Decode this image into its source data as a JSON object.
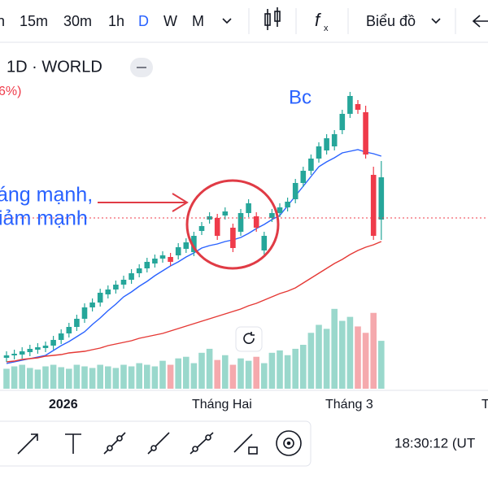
{
  "toolbar": {
    "intervals": [
      "n",
      "15m",
      "30m",
      "1h",
      "D",
      "W",
      "M"
    ],
    "chart_menu": "Biểu đồ"
  },
  "header": {
    "symbol": "1D · WORLD",
    "change": "6%)"
  },
  "annotations": {
    "top": "Bc",
    "line1": "áng mạnh,",
    "line2": "iảm mạnh"
  },
  "x_labels": [
    "2026",
    "Tháng Hai",
    "Tháng 3",
    "T"
  ],
  "footer": {
    "time": "18:30:12 (UT"
  },
  "chart_data": {
    "type": "candlestick",
    "ylim": [
      0,
      380
    ],
    "up_color": "#26a69a",
    "down_color": "#ef3b4a",
    "open": [
      40,
      43,
      44,
      47,
      50,
      52,
      55,
      62,
      70,
      78,
      88,
      102,
      108,
      118,
      124,
      130,
      136,
      144,
      150,
      156,
      162,
      164,
      166,
      174,
      170,
      196,
      210,
      212,
      215,
      200,
      195,
      218,
      214,
      172,
      212,
      218,
      225,
      235,
      255,
      270,
      285,
      295,
      300,
      320,
      340,
      352,
      342,
      265,
      210
    ],
    "close": [
      43,
      45,
      48,
      51,
      53,
      55,
      62,
      70,
      78,
      88,
      102,
      108,
      120,
      124,
      130,
      136,
      144,
      150,
      158,
      162,
      166,
      158,
      176,
      182,
      190,
      202,
      214,
      190,
      220,
      175,
      218,
      230,
      200,
      190,
      218,
      225,
      232,
      255,
      270,
      285,
      300,
      310,
      315,
      340,
      362,
      345,
      290,
      190,
      262
    ],
    "high": [
      48,
      50,
      53,
      56,
      58,
      60,
      67,
      75,
      83,
      93,
      107,
      113,
      125,
      129,
      135,
      141,
      149,
      155,
      163,
      167,
      171,
      169,
      181,
      187,
      195,
      207,
      219,
      217,
      225,
      205,
      223,
      235,
      219,
      195,
      223,
      230,
      237,
      260,
      275,
      290,
      305,
      315,
      320,
      345,
      367,
      357,
      350,
      275,
      282
    ],
    "low": [
      35,
      38,
      39,
      42,
      45,
      47,
      50,
      57,
      65,
      73,
      83,
      97,
      103,
      113,
      119,
      125,
      131,
      139,
      145,
      151,
      157,
      153,
      161,
      169,
      165,
      191,
      205,
      185,
      210,
      170,
      190,
      213,
      195,
      167,
      207,
      213,
      220,
      230,
      250,
      265,
      280,
      290,
      295,
      315,
      335,
      340,
      285,
      185,
      185
    ],
    "ma": [
      {
        "color": "#2962ff",
        "values": [
          33,
          35,
          37,
          39,
          41,
          43,
          49,
          55,
          60,
          66,
          72,
          81,
          89,
          98,
          106,
          115,
          121,
          128,
          134,
          141,
          147,
          153,
          158,
          164,
          169,
          175,
          178,
          180,
          183,
          185,
          188,
          193,
          199,
          204,
          210,
          215,
          227,
          239,
          251,
          263,
          275,
          281,
          286,
          292,
          294,
          296,
          293,
          291,
          288
        ]
      },
      {
        "color": "#e53935",
        "values": [
          35,
          36,
          38,
          39,
          40,
          42,
          43,
          44,
          46,
          47,
          48,
          50,
          52,
          55,
          57,
          59,
          61,
          64,
          66,
          68,
          70,
          73,
          76,
          79,
          82,
          85,
          88,
          91,
          94,
          97,
          100,
          104,
          107,
          111,
          115,
          119,
          122,
          126,
          132,
          138,
          144,
          150,
          156,
          161,
          167,
          172,
          176,
          179,
          183
        ]
      }
    ],
    "volume": {
      "ylim": [
        0,
        110
      ],
      "up_color": "#9ad8cc",
      "down_color": "#f5a9ad",
      "values": [
        25,
        28,
        30,
        26,
        24,
        28,
        30,
        27,
        25,
        30,
        28,
        26,
        30,
        28,
        26,
        30,
        28,
        32,
        30,
        28,
        35,
        30,
        38,
        40,
        32,
        45,
        50,
        36,
        42,
        30,
        38,
        35,
        40,
        32,
        45,
        48,
        42,
        50,
        55,
        70,
        80,
        75,
        100,
        85,
        90,
        78,
        70,
        95,
        60
      ]
    }
  }
}
